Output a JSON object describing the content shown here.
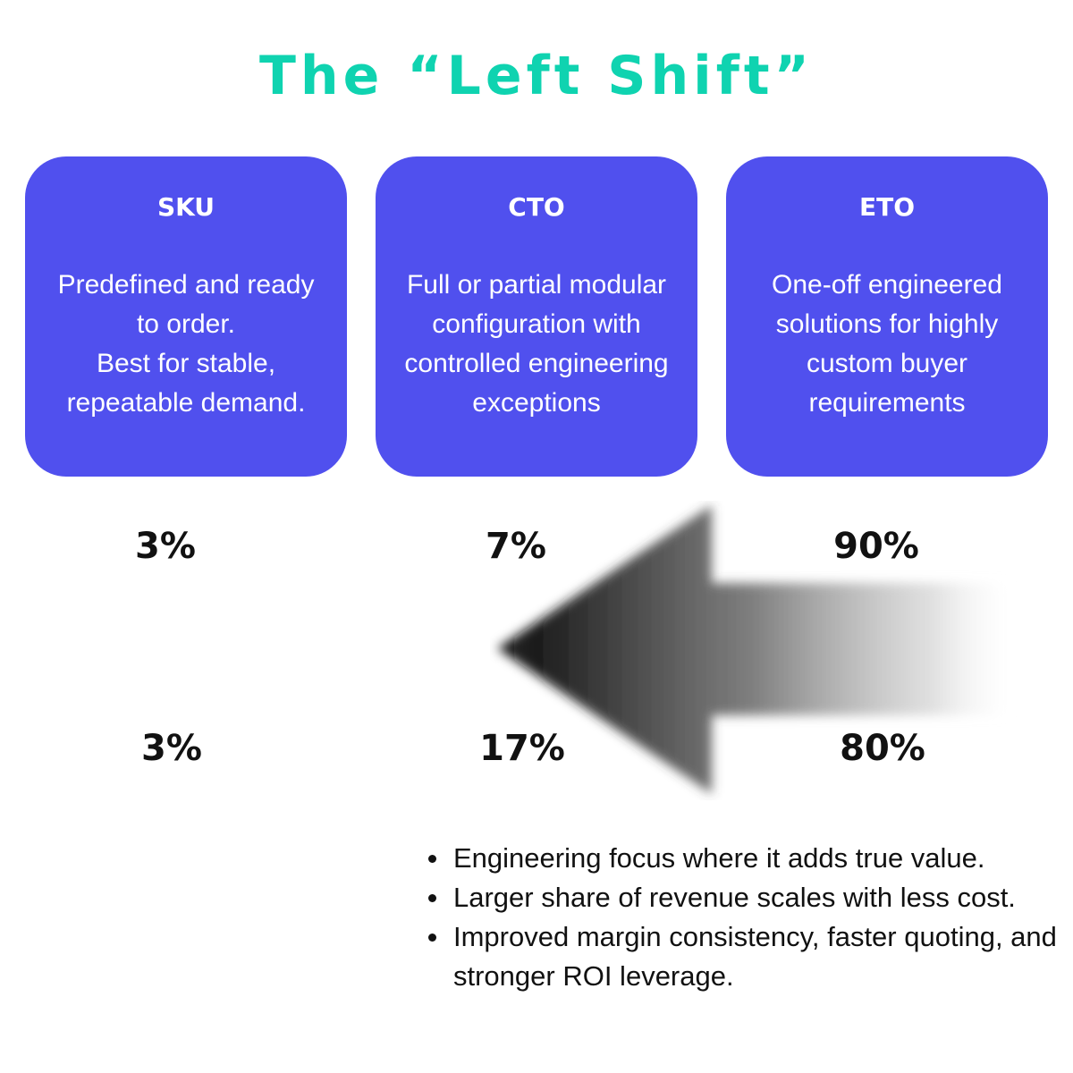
{
  "title": "The “Left Shift”",
  "cards": [
    {
      "heading": "SKU",
      "lines": [
        "Predefined and ready",
        "to order.",
        "Best for stable,",
        "repeatable demand."
      ]
    },
    {
      "heading": "CTO",
      "lines": [
        "Full or partial modular",
        "configuration with",
        "controlled engineering",
        "exceptions"
      ]
    },
    {
      "heading": "ETO",
      "lines": [
        "One-off engineered",
        "solutions for highly",
        "custom buyer",
        "requirements"
      ]
    }
  ],
  "top_percentages": [
    "3%",
    "7%",
    "90%"
  ],
  "bottom_percentages": [
    "3%",
    "17%",
    "80%"
  ],
  "arrow": {
    "direction": "left",
    "gradient": [
      "#000000",
      "#ffffff"
    ]
  },
  "bullets": [
    "Engineering focus where it adds true value.",
    "Larger share of revenue scales with less cost.",
    "Improved margin consistency, faster quoting, and stronger ROI leverage."
  ],
  "colors": {
    "title": "#0fd3b0",
    "card": "#5050ee",
    "card_text": "#ffffff",
    "text": "#111111"
  }
}
